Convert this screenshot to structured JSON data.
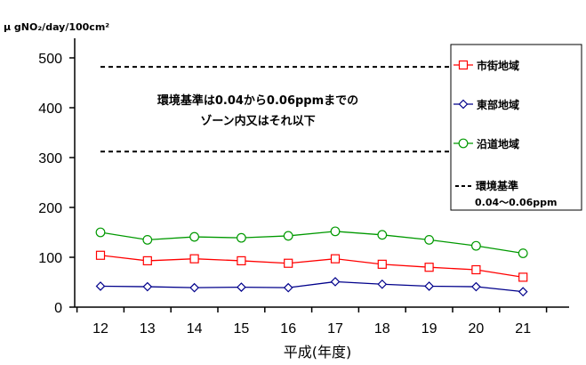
{
  "chart_data": {
    "type": "line",
    "y_unit": "μ gNO₂/day/100cm²",
    "xlabel": "平成(年度)",
    "x": [
      "12",
      "13",
      "14",
      "15",
      "16",
      "17",
      "18",
      "19",
      "20",
      "21"
    ],
    "ylim": [
      0,
      500
    ],
    "yticks": [
      0,
      100,
      200,
      300,
      400,
      500
    ],
    "series": [
      {
        "name": "市街地域",
        "color": "#ff0000",
        "marker": "square",
        "values": [
          104,
          93,
          97,
          93,
          88,
          97,
          86,
          80,
          75,
          60
        ]
      },
      {
        "name": "東部地域",
        "color": "#00008b",
        "marker": "diamond",
        "values": [
          42,
          41,
          39,
          40,
          39,
          51,
          46,
          42,
          41,
          31
        ]
      },
      {
        "name": "沿道地域",
        "color": "#009900",
        "marker": "circle",
        "values": [
          150,
          135,
          141,
          139,
          143,
          152,
          145,
          135,
          123,
          108
        ]
      }
    ],
    "standard": {
      "name": "環境基準",
      "range_label": "0.04～0.06ppm",
      "upper": 482,
      "lower": 312,
      "annotation": [
        "環境基準は0.04から0.06ppmまでの",
        "ゾーン内又はそれ以下"
      ]
    },
    "legend_position": "right",
    "grid": false
  }
}
